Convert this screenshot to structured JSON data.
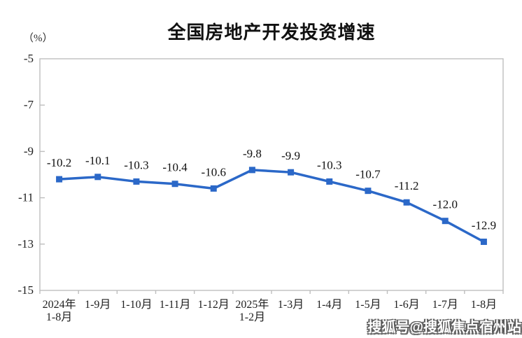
{
  "title": "全国房地产开发投资增速",
  "watermark": {
    "text": "搜狐号@搜狐焦点宿州站"
  },
  "chart_data": {
    "type": "line",
    "title": "全国房地产开发投资增速",
    "ylabel": "（%）",
    "xlabel": "",
    "ylim": [
      -15,
      -5
    ],
    "yticks": [
      -5,
      -7,
      -9,
      -11,
      -13,
      -15
    ],
    "categories": [
      [
        "2024年",
        "1-8月"
      ],
      [
        "1-9月"
      ],
      [
        "1-10月"
      ],
      [
        "1-11月"
      ],
      [
        "1-12月"
      ],
      [
        "2025年",
        "1-2月"
      ],
      [
        "1-3月"
      ],
      [
        "1-4月"
      ],
      [
        "1-5月"
      ],
      [
        "1-6月"
      ],
      [
        "1-7月"
      ],
      [
        "1-8月"
      ]
    ],
    "values": [
      -10.2,
      -10.1,
      -10.3,
      -10.4,
      -10.6,
      -9.8,
      -9.9,
      -10.3,
      -10.7,
      -11.2,
      -12.0,
      -12.9
    ],
    "data_labels": [
      "-10.2",
      "-10.1",
      "-10.3",
      "-10.4",
      "-10.6",
      "-9.8",
      "-9.9",
      "-10.3",
      "-10.7",
      "-11.2",
      "-12.0",
      "-12.9"
    ],
    "series_name": "全国房地产开发投资增速",
    "line_color": "#2B68C8",
    "marker": "square",
    "grid": false,
    "legend": false,
    "axis_color": "#BEBEBE",
    "text_color": "#1F1F1F"
  }
}
